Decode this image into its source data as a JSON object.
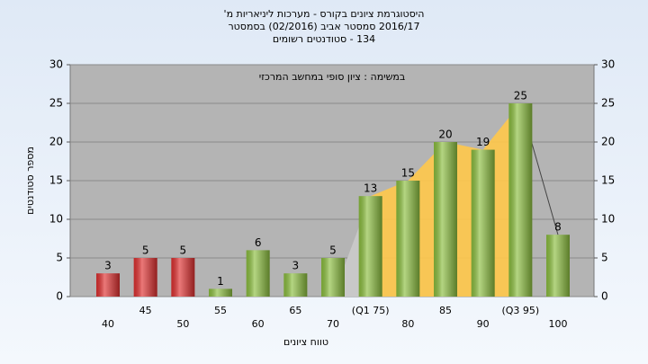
{
  "chart_data": {
    "type": "bar",
    "title": [
      "היסטוגרמת ציונים בקורס - מערכות ליניאריות מ'",
      "2016/17 סמסטר אביב (02/2016) בסמסטר",
      "134 - סטודנטים רשומים"
    ],
    "series_name": "במשימה : ציון סופי במחשב המרכזי",
    "x_label": "טווח ציונים",
    "y_label": "מספר סטודנטים",
    "categories": [
      "40",
      "45",
      "50",
      "55",
      "60",
      "65",
      "70",
      "(Q1 75)",
      "80",
      "85",
      "90",
      "(Q3 95)",
      "100"
    ],
    "values": [
      3,
      5,
      5,
      1,
      6,
      3,
      5,
      13,
      15,
      20,
      19,
      25,
      8
    ],
    "colors": [
      "#e03030",
      "#e03030",
      "#e03030",
      "#8cbf3f",
      "#8cbf3f",
      "#8cbf3f",
      "#8cbf3f",
      "#8cbf3f",
      "#8cbf3f",
      "#8cbf3f",
      "#8cbf3f",
      "#8cbf3f",
      "#8cbf3f"
    ],
    "quartile_color": "#ffc84a",
    "ylim": [
      0,
      30
    ],
    "yticks": [
      0,
      5,
      10,
      15,
      20,
      25,
      30
    ],
    "y2lim": [
      0,
      30
    ],
    "y2ticks": [
      0,
      5,
      10,
      15,
      20,
      25,
      30
    ],
    "grid": true
  }
}
